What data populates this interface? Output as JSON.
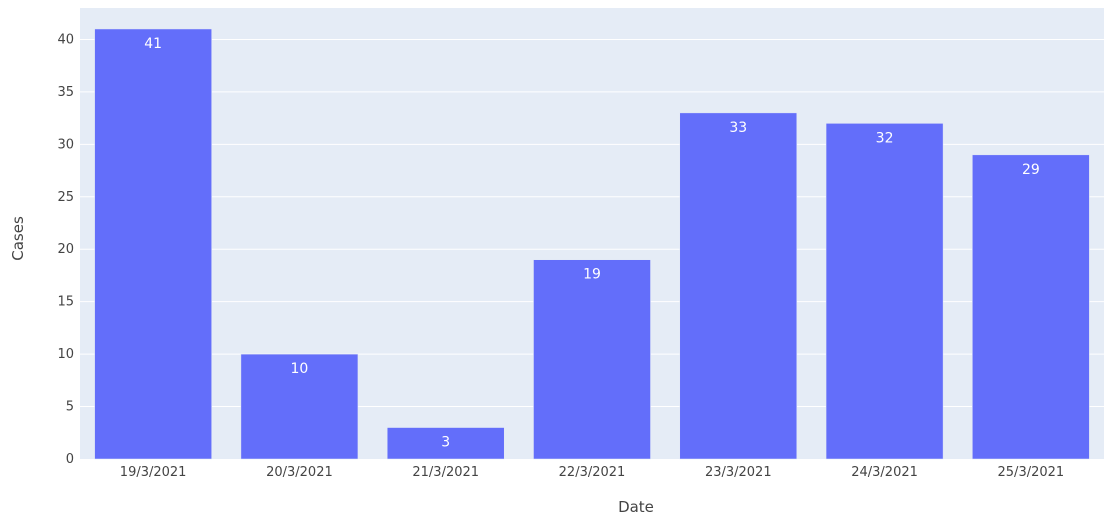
{
  "chart_data": {
    "type": "bar",
    "categories": [
      "19/3/2021",
      "20/3/2021",
      "21/3/2021",
      "22/3/2021",
      "23/3/2021",
      "24/3/2021",
      "25/3/2021"
    ],
    "values": [
      41,
      10,
      3,
      19,
      33,
      32,
      29
    ],
    "data_labels": [
      "41",
      "10",
      "3",
      "19",
      "33",
      "32",
      "29"
    ],
    "title": "",
    "xlabel": "Date",
    "ylabel": "Cases",
    "ylim": [
      0,
      43
    ],
    "yticks": [
      0,
      5,
      10,
      15,
      20,
      25,
      30,
      35,
      40
    ],
    "ytick_labels": [
      "0",
      "5",
      "10",
      "15",
      "20",
      "25",
      "30",
      "35",
      "40"
    ],
    "grid": true,
    "legend": "none",
    "colors": {
      "bar": "#636efa",
      "plot_background": "#e5ecf6",
      "grid": "#ffffff",
      "text": "#444444",
      "bar_label": "#ffffff"
    }
  }
}
